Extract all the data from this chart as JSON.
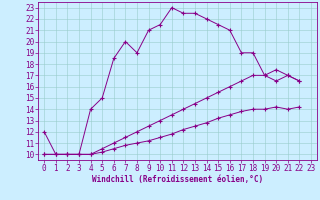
{
  "xlabel": "Windchill (Refroidissement éolien,°C)",
  "bg_color": "#cceeff",
  "line_color": "#880088",
  "xlim": [
    -0.5,
    23.5
  ],
  "ylim": [
    9.5,
    23.5
  ],
  "yticks": [
    10,
    11,
    12,
    13,
    14,
    15,
    16,
    17,
    18,
    19,
    20,
    21,
    22,
    23
  ],
  "xticks": [
    0,
    1,
    2,
    3,
    4,
    5,
    6,
    7,
    8,
    9,
    10,
    11,
    12,
    13,
    14,
    15,
    16,
    17,
    18,
    19,
    20,
    21,
    22,
    23
  ],
  "s1x": [
    0,
    1,
    2,
    3,
    4,
    5,
    6,
    7,
    8,
    9,
    10,
    11,
    12,
    13,
    14,
    15,
    16,
    17,
    18,
    19,
    20,
    21,
    22
  ],
  "s1y": [
    12,
    10,
    10,
    10,
    14,
    15,
    18.5,
    20,
    19,
    21,
    21.5,
    23,
    22.5,
    22.5,
    22,
    21.5,
    21,
    19,
    19,
    17,
    16.5,
    17,
    16.5
  ],
  "s2x": [
    0,
    1,
    2,
    3,
    4,
    5,
    6,
    7,
    8,
    9,
    10,
    11,
    12,
    13,
    14,
    15,
    16,
    17,
    18,
    19,
    20,
    21,
    22
  ],
  "s2y": [
    10,
    10,
    10,
    10,
    10,
    10.5,
    11,
    11.5,
    12,
    12.5,
    13,
    13.5,
    14,
    14.5,
    15,
    15.5,
    16,
    16.5,
    17,
    17,
    17.5,
    17,
    16.5
  ],
  "s3x": [
    0,
    1,
    2,
    3,
    4,
    5,
    6,
    7,
    8,
    9,
    10,
    11,
    12,
    13,
    14,
    15,
    16,
    17,
    18,
    19,
    20,
    21,
    22
  ],
  "s3y": [
    10,
    10,
    10,
    10,
    10,
    10.2,
    10.5,
    10.8,
    11,
    11.2,
    11.5,
    11.8,
    12.2,
    12.5,
    12.8,
    13.2,
    13.5,
    13.8,
    14,
    14,
    14.2,
    14,
    14.2
  ],
  "tick_fontsize": 5.5,
  "xlabel_fontsize": 5.5
}
